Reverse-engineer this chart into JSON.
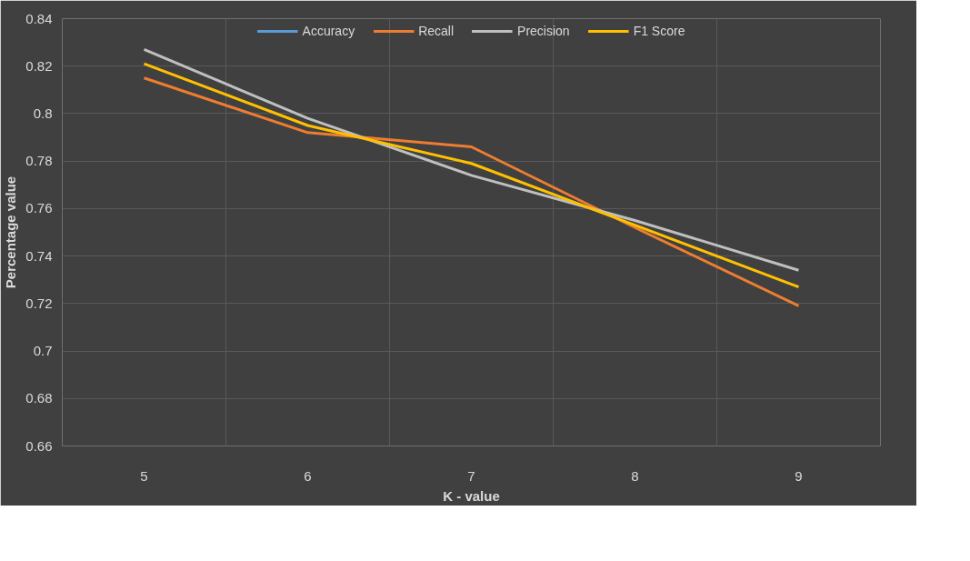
{
  "chart_data": {
    "type": "line",
    "xlabel": "K - value",
    "ylabel": "Percentage value",
    "categories": [
      "5",
      "6",
      "7",
      "8",
      "9"
    ],
    "series": [
      {
        "name": "Accuracy",
        "color": "#5b9bd5",
        "values": [
          null,
          null,
          null,
          null,
          null
        ]
      },
      {
        "name": "Recall",
        "color": "#ed7d31",
        "values": [
          0.815,
          0.792,
          0.786,
          0.752,
          0.719
        ]
      },
      {
        "name": "Precision",
        "color": "#bfbfbf",
        "values": [
          0.827,
          0.798,
          0.774,
          0.755,
          0.734
        ]
      },
      {
        "name": "F1 Score",
        "color": "#ffc000",
        "values": [
          0.821,
          0.795,
          0.779,
          0.753,
          0.727
        ]
      }
    ],
    "ylim": [
      0.66,
      0.84
    ],
    "yticks": [
      0.66,
      0.68,
      0.7,
      0.72,
      0.74,
      0.76,
      0.78,
      0.8,
      0.82,
      0.84
    ],
    "grid": true,
    "legend": "top",
    "marker": "none",
    "line_style": "solid"
  }
}
